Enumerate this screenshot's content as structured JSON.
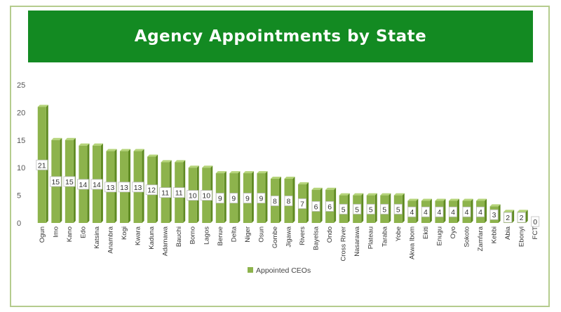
{
  "chart_data": {
    "type": "bar",
    "title": "Agency Appointments by State",
    "xlabel": "",
    "ylabel": "",
    "ylim": [
      0,
      25
    ],
    "yticks": [
      0,
      5,
      10,
      15,
      20,
      25
    ],
    "categories": [
      "Ogun",
      "Imo",
      "Kano",
      "Edo",
      "Katsina",
      "Anambra",
      "Kogi",
      "Kwara",
      "Kaduna",
      "Adamawa",
      "Bauchi",
      "Borno",
      "Lagos",
      "Benue",
      "Delta",
      "Niger",
      "Osun",
      "Gombe",
      "Jigawa",
      "Rivers",
      "Bayelsa",
      "Ondo",
      "Cross River",
      "Nasarawa",
      "Plateau",
      "Taraba",
      "Yobe",
      "Akwa Ibom",
      "Ekiti",
      "Enugu",
      "Oyo",
      "Sokoto",
      "Zamfara",
      "Kebbi",
      "Abia",
      "Ebonyi",
      "FCT"
    ],
    "series": [
      {
        "name": "Appointed CEOs",
        "values": [
          21,
          15,
          15,
          14,
          14,
          13,
          13,
          13,
          12,
          11,
          11,
          10,
          10,
          9,
          9,
          9,
          9,
          8,
          8,
          7,
          6,
          6,
          5,
          5,
          5,
          5,
          5,
          4,
          4,
          4,
          4,
          4,
          4,
          3,
          2,
          2,
          0
        ]
      }
    ],
    "grid": false,
    "legend": "bottom",
    "colors": {
      "bar_front": "#8db34c",
      "bar_side": "#5f8a22",
      "bar_top": "#b5d47a",
      "banner": "#138a22",
      "frame": "#b5cc8e"
    }
  }
}
